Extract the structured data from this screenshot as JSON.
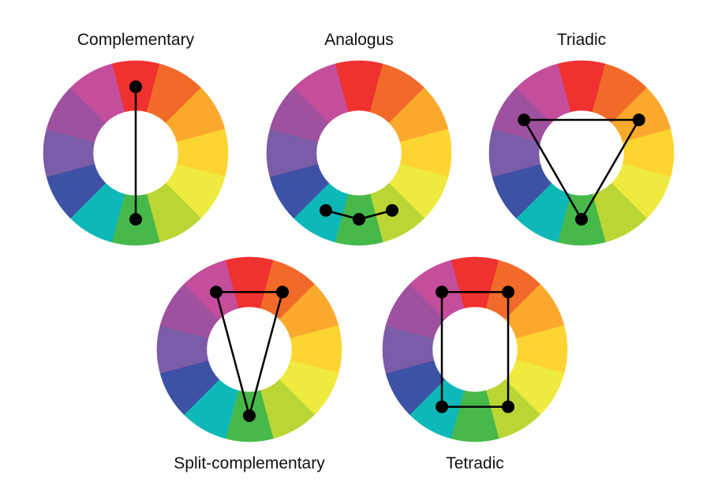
{
  "segment_colors": [
    "#EF3130",
    "#F26A2A",
    "#FBA92C",
    "#FDD533",
    "#EFEA40",
    "#BAD635",
    "#47B94A",
    "#0FB8B8",
    "#3D51A5",
    "#7A5CA8",
    "#9E519E",
    "#C44E9C"
  ],
  "segment_names": [
    "red",
    "red-orange",
    "orange",
    "yellow-orange",
    "yellow",
    "yellow-green",
    "green",
    "blue-green",
    "blue",
    "blue-violet",
    "violet",
    "red-violet"
  ],
  "marker_color": "#000000",
  "wheels": [
    {
      "label": "Complementary",
      "selected_segments": [
        0,
        6
      ],
      "closed": false
    },
    {
      "label": "Analogus",
      "selected_segments": [
        5,
        6,
        7
      ],
      "closed": false
    },
    {
      "label": "Triadic",
      "selected_segments": [
        2,
        6,
        10
      ],
      "closed": true
    },
    {
      "label": "Split-complementary",
      "selected_segments": [
        11,
        1,
        6
      ],
      "closed": true
    },
    {
      "label": "Tetradic",
      "selected_segments": [
        11,
        1,
        5,
        7
      ],
      "closed": true
    }
  ]
}
